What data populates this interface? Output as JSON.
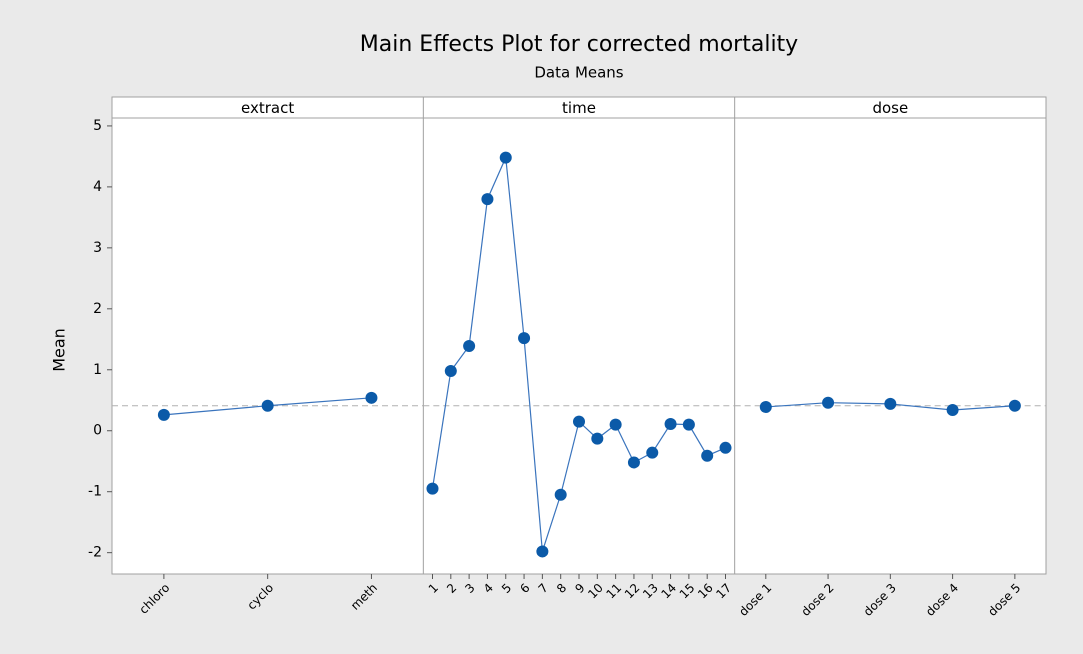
{
  "chart_data": {
    "type": "line",
    "title": "Main Effects Plot for corrected mortality",
    "subtitle": "Data Means",
    "y_label": "Mean",
    "ylim": [
      -2.35,
      5.13
    ],
    "yticks": [
      -2,
      -1,
      0,
      1,
      2,
      3,
      4,
      5
    ],
    "reference_line": 0.41,
    "color": "#0b5aa8",
    "panels": [
      {
        "name": "extract",
        "categories": [
          "chloro",
          "cyclo",
          "meth"
        ],
        "values": [
          0.26,
          0.41,
          0.54
        ]
      },
      {
        "name": "time",
        "categories": [
          "1",
          "2",
          "3",
          "4",
          "5",
          "6",
          "7",
          "8",
          "9",
          "10",
          "11",
          "12",
          "13",
          "14",
          "15",
          "16",
          "17"
        ],
        "values": [
          -0.95,
          0.98,
          1.39,
          3.8,
          4.48,
          1.52,
          -1.98,
          -1.05,
          0.15,
          -0.13,
          0.1,
          -0.52,
          -0.36,
          0.11,
          0.1,
          -0.41,
          -0.28
        ]
      },
      {
        "name": "dose",
        "categories": [
          "dose 1",
          "dose 2",
          "dose 3",
          "dose 4",
          "dose 5"
        ],
        "values": [
          0.39,
          0.46,
          0.44,
          0.34,
          0.41
        ]
      }
    ]
  }
}
